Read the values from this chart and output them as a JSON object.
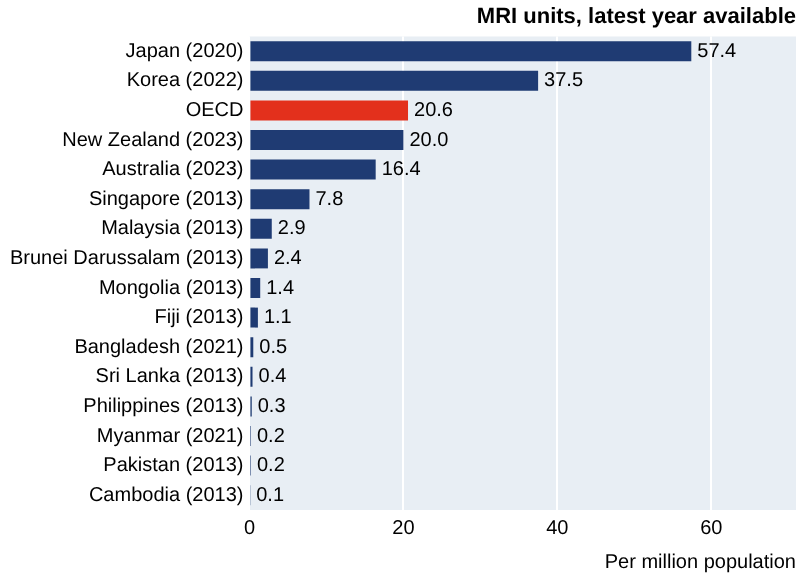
{
  "chart_data": {
    "type": "bar",
    "orientation": "horizontal",
    "title": "MRI units, latest year available",
    "xlabel": "Per million population",
    "categories": [
      "Japan (2020)",
      "Korea (2022)",
      "OECD",
      "New Zealand (2023)",
      "Australia (2023)",
      "Singapore (2013)",
      "Malaysia (2013)",
      "Brunei Darussalam (2013)",
      "Mongolia (2013)",
      "Fiji (2013)",
      "Bangladesh (2021)",
      "Sri Lanka (2013)",
      "Philippines (2013)",
      "Myanmar (2021)",
      "Pakistan (2013)",
      "Cambodia (2013)"
    ],
    "values": [
      57.4,
      37.5,
      20.6,
      20.0,
      16.4,
      7.8,
      2.9,
      2.4,
      1.4,
      1.1,
      0.5,
      0.4,
      0.3,
      0.2,
      0.2,
      0.1
    ],
    "value_labels": [
      "57.4",
      "37.5",
      "20.6",
      "20.0",
      "16.4",
      "7.8",
      "2.9",
      "2.4",
      "1.4",
      "1.1",
      "0.5",
      "0.4",
      "0.3",
      "0.2",
      "0.2",
      "0.1"
    ],
    "colors": [
      "#1f3b73",
      "#1f3b73",
      "#e3301c",
      "#1f3b73",
      "#1f3b73",
      "#1f3b73",
      "#1f3b73",
      "#1f3b73",
      "#1f3b73",
      "#1f3b73",
      "#1f3b73",
      "#1f3b73",
      "#1f3b73",
      "#1f3b73",
      "#1f3b73",
      "#1f3b73"
    ],
    "xlim": [
      0,
      71
    ],
    "xticks": [
      0,
      20,
      40,
      60
    ],
    "grid": "x",
    "legend": false
  }
}
